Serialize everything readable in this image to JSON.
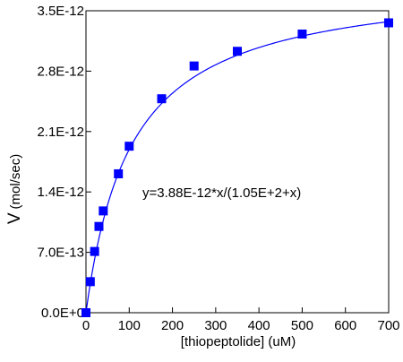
{
  "chart_data": {
    "type": "scatter",
    "xlabel": "[thiopeptolide] (uM)",
    "ylabel_symbol": "V",
    "ylabel_units": "(mol/sec)",
    "xlim": [
      0,
      700
    ],
    "ylim": [
      0,
      3.5e-12
    ],
    "x_ticks": [
      0,
      100,
      200,
      300,
      400,
      500,
      600,
      700
    ],
    "x_tick_labels": [
      "0",
      "100",
      "200",
      "300",
      "400",
      "500",
      "600",
      "700"
    ],
    "y_ticks": [
      0,
      7e-13,
      1.4e-12,
      2.1e-12,
      2.8e-12,
      3.5e-12
    ],
    "y_tick_labels": [
      "0.0E+0",
      "7.0E-13",
      "1.4E-12",
      "2.1E-12",
      "2.8E-12",
      "3.5E-12"
    ],
    "grid": false,
    "legend": "none",
    "series": [
      {
        "marker": "square",
        "color": "#0000ff",
        "points": [
          {
            "x": 0,
            "y": 0
          },
          {
            "x": 10,
            "y": 3.6e-13
          },
          {
            "x": 20,
            "y": 7.1e-13
          },
          {
            "x": 30,
            "y": 1e-12
          },
          {
            "x": 40,
            "y": 1.18e-12
          },
          {
            "x": 75,
            "y": 1.61e-12
          },
          {
            "x": 100,
            "y": 1.93e-12
          },
          {
            "x": 175,
            "y": 2.48e-12
          },
          {
            "x": 250,
            "y": 2.86e-12
          },
          {
            "x": 350,
            "y": 3.03e-12
          },
          {
            "x": 500,
            "y": 3.23e-12
          },
          {
            "x": 700,
            "y": 3.36e-12
          }
        ]
      }
    ],
    "fit": {
      "color": "#0000ff",
      "vmax": 3.88e-12,
      "km": 105,
      "equation": "y=3.88E-12*x/(1.05E+2+x)"
    }
  }
}
